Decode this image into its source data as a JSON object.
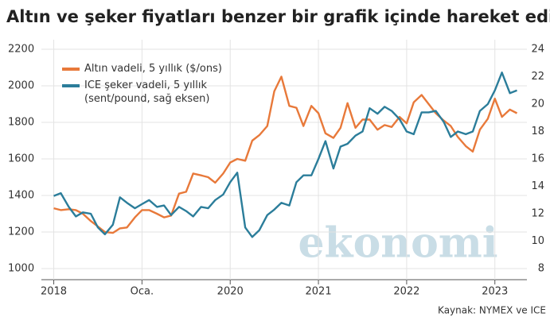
{
  "chart_data": {
    "type": "line",
    "title": "Altın ve şeker fiyatları benzer bir grafik içinde hareket ediyor",
    "source": "Kaynak: NYMEX ve ICE",
    "watermark": "ekonomi",
    "x": [
      2018,
      2018.08,
      2018.17,
      2018.25,
      2018.33,
      2018.42,
      2018.5,
      2018.58,
      2018.67,
      2018.75,
      2018.83,
      2018.92,
      2019,
      2019.08,
      2019.17,
      2019.25,
      2019.33,
      2019.42,
      2019.5,
      2019.58,
      2019.67,
      2019.75,
      2019.83,
      2019.92,
      2020,
      2020.08,
      2020.17,
      2020.25,
      2020.33,
      2020.42,
      2020.5,
      2020.58,
      2020.67,
      2020.75,
      2020.83,
      2020.92,
      2021,
      2021.08,
      2021.17,
      2021.25,
      2021.33,
      2021.42,
      2021.5,
      2021.58,
      2021.67,
      2021.75,
      2021.83,
      2021.92,
      2022,
      2022.08,
      2022.17,
      2022.25,
      2022.33,
      2022.42,
      2022.5,
      2022.58,
      2022.67,
      2022.75,
      2022.83,
      2022.92,
      2023,
      2023.08,
      2023.17,
      2023.25
    ],
    "series": [
      {
        "name": "Altın vadeli, 5 yıllık ($/ons)",
        "color": "#e8793a",
        "values": [
          1330,
          1320,
          1325,
          1320,
          1300,
          1260,
          1230,
          1200,
          1195,
          1220,
          1225,
          1280,
          1320,
          1320,
          1300,
          1280,
          1290,
          1410,
          1420,
          1520,
          1510,
          1500,
          1470,
          1520,
          1580,
          1600,
          1590,
          1700,
          1730,
          1780,
          1970,
          2050,
          1890,
          1880,
          1780,
          1890,
          1850,
          1740,
          1715,
          1770,
          1905,
          1770,
          1815,
          1815,
          1760,
          1785,
          1775,
          1830,
          1795,
          1910,
          1950,
          1900,
          1850,
          1810,
          1780,
          1720,
          1670,
          1640,
          1760,
          1820,
          1930,
          1830,
          1870,
          1850
        ]
      },
      {
        "name": "ICE şeker vadeli, 5 yıllık (sent/pound, sağ eksen)",
        "color": "#2b7d9a",
        "axis": "y2",
        "values": [
          13.3,
          13.5,
          12.5,
          11.8,
          12.1,
          12.0,
          11.0,
          10.5,
          11.2,
          13.2,
          12.8,
          12.4,
          12.7,
          13.0,
          12.5,
          12.6,
          11.9,
          12.5,
          12.2,
          11.8,
          12.5,
          12.4,
          13.0,
          13.4,
          14.3,
          15.0,
          11.0,
          10.3,
          10.8,
          11.9,
          12.3,
          12.8,
          12.6,
          14.3,
          14.8,
          14.8,
          16.0,
          17.3,
          15.3,
          16.9,
          17.1,
          17.7,
          18.0,
          19.7,
          19.3,
          19.8,
          19.5,
          18.9,
          18.0,
          17.8,
          19.4,
          19.4,
          19.5,
          18.7,
          17.6,
          18.0,
          17.8,
          18.0,
          19.5,
          20.0,
          21.0,
          22.3,
          20.8,
          21.0
        ]
      }
    ],
    "xlim": [
      2017.95,
      2023.3
    ],
    "xticks": [
      2018,
      {
        "value": 2019,
        "label": "Oca."
      },
      2020,
      2021,
      2022,
      2023
    ],
    "ylim": [
      1000,
      2200
    ],
    "yticks": [
      1000,
      1200,
      1400,
      1600,
      1800,
      2000,
      2200
    ],
    "y2lim": [
      8,
      24
    ],
    "y2ticks": [
      8,
      10,
      12,
      14,
      16,
      18,
      20,
      22,
      24
    ],
    "grid": true
  }
}
